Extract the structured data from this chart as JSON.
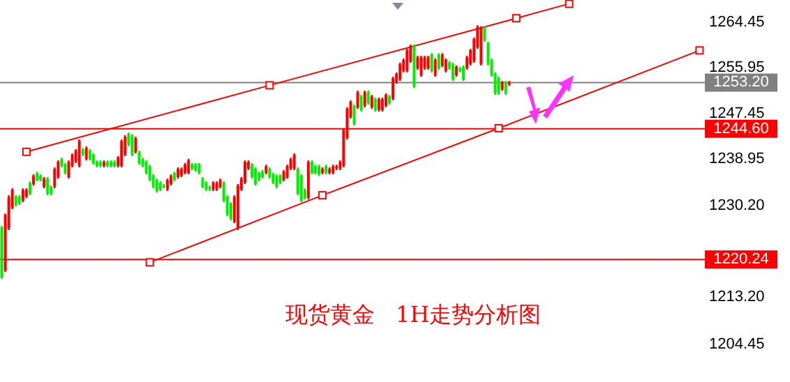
{
  "chart_data": {
    "type": "candlestick",
    "title": "现货黄金   1H走势分析图",
    "ylim": [
      1197.4,
      1268.6
    ],
    "categories": [
      null,
      null,
      null,
      null,
      null,
      null,
      null,
      null,
      null,
      null,
      null,
      null,
      null,
      null,
      null,
      null,
      null,
      null,
      null,
      null,
      null,
      null,
      null,
      null,
      null,
      null,
      null,
      null,
      null,
      null,
      null,
      null,
      null,
      null,
      null,
      null,
      null,
      null,
      null,
      null,
      null,
      null,
      null,
      null,
      null,
      null,
      null,
      null,
      null,
      null,
      null,
      null,
      null,
      null,
      null,
      null,
      null,
      null,
      null,
      null,
      null,
      null,
      null,
      null,
      null,
      null,
      null,
      null,
      null,
      null,
      null,
      null,
      null,
      null,
      null,
      null,
      null,
      null,
      null,
      null,
      null,
      null,
      null,
      null,
      null,
      null,
      null,
      null,
      null,
      null,
      null,
      null,
      null,
      null,
      null,
      null,
      null,
      null,
      null,
      null,
      null,
      null,
      null,
      null,
      null,
      null,
      null,
      null,
      null,
      null,
      null,
      null,
      null,
      null,
      null,
      null,
      null,
      null,
      null,
      null,
      null,
      null,
      null,
      null,
      null,
      null,
      null,
      null,
      null,
      null,
      null,
      null,
      null,
      null,
      null,
      null,
      null,
      null,
      null,
      null,
      null,
      null,
      null,
      null,
      null,
      null,
      null,
      null,
      null,
      null,
      null,
      null,
      null,
      null,
      null,
      null,
      null,
      null,
      null,
      null,
      null,
      null,
      null,
      null,
      null,
      null,
      null,
      null,
      null,
      null,
      null,
      null,
      null,
      null,
      null,
      null,
      null,
      null,
      null,
      null,
      null,
      null,
      null,
      null,
      null,
      null,
      null,
      null,
      null,
      null,
      null,
      null,
      null,
      null,
      null,
      null,
      null,
      null,
      null,
      null
    ],
    "yticks": [
      {
        "value": 1264.45,
        "label": "1264.45"
      },
      {
        "value": 1255.95,
        "label": "1255.95"
      },
      {
        "value": 1247.45,
        "label": "1247.45"
      },
      {
        "value": 1238.95,
        "label": "1238.95"
      },
      {
        "value": 1230.2,
        "label": "1230.20"
      },
      {
        "value": 1213.2,
        "label": "1213.20"
      },
      {
        "value": 1204.45,
        "label": "1204.45"
      }
    ],
    "ref_lines": [
      {
        "axis": "y",
        "value": 1253.2,
        "label": "1253.20",
        "color": "#808080"
      },
      {
        "axis": "y",
        "value": 1244.6,
        "label": "1244.60",
        "color": "#ff0000"
      },
      {
        "axis": "y",
        "value": 1220.24,
        "label": "1220.24",
        "color": "#ff0000"
      }
    ],
    "series": [
      {
        "colors": [
          "#00ee00",
          "#ff0000",
          "#ff0000",
          "#ff0000",
          "#00ee00",
          "#00ee00",
          "#ff0000",
          "#ff0000",
          "#00ee00",
          "#ff0000",
          "#00ee00",
          "#00ee00",
          "#ff0000",
          "#00ee00",
          "#00ee00",
          "#ff0000",
          "#ff0000",
          "#00ee00",
          "#00ee00",
          "#ff0000",
          "#ff0000",
          "#ff0000",
          "#ff0000",
          "#00ee00",
          "#ff0000",
          "#00ee00",
          "#00ee00",
          "#00ee00",
          "#00ee00",
          "#ff0000",
          "#00ee00",
          "#00ee00",
          "#00ee00",
          "#ff0000",
          "#ff0000",
          "#ff0000",
          "#00ee00",
          "#00ee00",
          "#ff0000",
          "#00ee00",
          "#00ee00",
          "#00ee00",
          "#00ee00",
          "#00ee00",
          "#00ee00",
          "#00ee00",
          "#00ee00",
          "#ff0000",
          "#ff0000",
          "#00ee00",
          "#ff0000",
          "#ff0000",
          "#ff0000",
          "#ff0000",
          "#00ee00",
          "#00ee00",
          "#00ee00",
          "#00ee00",
          "#00ee00",
          "#00ee00",
          "#ff0000",
          "#ff0000",
          "#ff0000",
          "#00ee00",
          "#00ee00",
          "#00ee00",
          "#ff0000",
          "#ff0000",
          "#ff0000",
          "#ff0000",
          "#ff0000",
          "#00ee00",
          "#00ee00",
          "#00ee00",
          "#00ee00",
          "#ff0000",
          "#00ee00",
          "#00ee00",
          "#00ee00",
          "#00ee00",
          "#ff0000",
          "#ff0000",
          "#ff0000",
          "#ff0000",
          "#00ee00",
          "#00ee00",
          "#00ee00",
          "#ff0000",
          "#00ee00",
          "#00ee00",
          "#00ee00",
          "#ff0000",
          "#00ee00",
          "#ff0000",
          "#ff0000",
          "#ff0000",
          "#ff0000",
          "#ff0000",
          "#ff0000",
          "#ff0000",
          "#00ee00",
          "#ff0000",
          "#00ee00",
          "#ff0000",
          "#00ee00",
          "#ff0000",
          "#00ee00",
          "#ff0000",
          "#ff0000",
          "#ff0000",
          "#00ee00",
          "#ff0000",
          "#ff0000",
          "#ff0000",
          "#ff0000",
          "#ff0000",
          "#ff0000",
          "#00ee00",
          "#ff0000",
          "#ff0000",
          "#ff0000",
          "#ff0000",
          "#00ee00",
          "#ff0000",
          "#00ee00",
          "#ff0000",
          "#ff0000",
          "#00ee00",
          "#00ee00",
          "#ff0000",
          "#00ee00",
          "#00ee00",
          "#ff0000",
          "#ff0000",
          "#ff0000",
          "#ff0000",
          "#ff0000",
          "#00ee00",
          "#00ee00",
          "#00ee00",
          "#00ee00",
          "#00ee00",
          "#ff0000",
          "#00ee00",
          "#ff0000",
          null,
          null,
          null,
          null,
          null,
          null,
          null,
          null,
          null,
          null,
          null,
          null,
          null,
          null,
          null,
          null,
          null,
          null,
          null,
          null,
          null,
          null,
          null,
          null,
          null,
          null,
          null,
          null,
          null,
          null,
          null,
          null,
          null,
          null,
          null,
          null,
          null,
          null,
          null,
          null,
          null,
          null,
          null,
          null,
          null,
          null,
          null,
          null,
          null,
          null,
          null,
          null,
          null,
          null,
          null
        ],
        "ohlc": [
          [
            1226.2,
            1226.5,
            1216.6,
            1216.9
          ],
          [
            1218.2,
            1228.8,
            1217.9,
            1228.5
          ],
          [
            1226.0,
            1232.2,
            1225.7,
            1231.9
          ],
          [
            1229.9,
            1233.5,
            1229.6,
            1233.2
          ],
          [
            1231.9,
            1232.2,
            1230.1,
            1230.4
          ],
          [
            1231.9,
            1232.2,
            1230.4,
            1230.7
          ],
          [
            1231.2,
            1233.5,
            1230.9,
            1233.2
          ],
          [
            1232.0,
            1233.5,
            1231.7,
            1233.2
          ],
          [
            1234.5,
            1234.8,
            1232.2,
            1232.5
          ],
          [
            1234.3,
            1236.1,
            1234.0,
            1235.8
          ],
          [
            1236.3,
            1236.6,
            1234.8,
            1235.1
          ],
          [
            1235.8,
            1236.1,
            1234.8,
            1235.1
          ],
          [
            1233.8,
            1235.6,
            1233.5,
            1235.3
          ],
          [
            1235.3,
            1235.6,
            1232.2,
            1232.5
          ],
          [
            1233.7,
            1234.0,
            1232.2,
            1232.5
          ],
          [
            1233.8,
            1237.4,
            1233.5,
            1237.1
          ],
          [
            1235.6,
            1238.7,
            1235.3,
            1238.4
          ],
          [
            1238.9,
            1239.2,
            1237.4,
            1237.7
          ],
          [
            1237.9,
            1238.2,
            1236.1,
            1236.4
          ],
          [
            1235.6,
            1238.7,
            1235.3,
            1238.4
          ],
          [
            1237.7,
            1240.0,
            1237.4,
            1239.7
          ],
          [
            1238.5,
            1240.8,
            1238.2,
            1240.5
          ],
          [
            1237.7,
            1242.6,
            1237.4,
            1242.3
          ],
          [
            1240.7,
            1241.0,
            1239.5,
            1239.8
          ],
          [
            1239.0,
            1241.3,
            1238.7,
            1241.0
          ],
          [
            1240.5,
            1240.8,
            1238.7,
            1239.0
          ],
          [
            1239.7,
            1240.0,
            1237.9,
            1238.2
          ],
          [
            1238.4,
            1238.7,
            1237.4,
            1237.7
          ],
          [
            1238.4,
            1238.7,
            1237.4,
            1237.7
          ],
          [
            1237.7,
            1238.7,
            1237.4,
            1238.4
          ],
          [
            1238.4,
            1238.7,
            1237.4,
            1237.7
          ],
          [
            1238.4,
            1238.7,
            1237.4,
            1237.7
          ],
          [
            1238.4,
            1238.7,
            1237.4,
            1237.7
          ],
          [
            1237.7,
            1239.5,
            1237.4,
            1239.2
          ],
          [
            1237.7,
            1242.6,
            1237.4,
            1242.3
          ],
          [
            1239.8,
            1243.4,
            1239.5,
            1243.1
          ],
          [
            1243.6,
            1243.9,
            1241.3,
            1241.6
          ],
          [
            1243.3,
            1243.6,
            1239.5,
            1239.8
          ],
          [
            1240.3,
            1243.1,
            1240.0,
            1242.8
          ],
          [
            1240.2,
            1240.5,
            1237.9,
            1238.2
          ],
          [
            1238.9,
            1239.2,
            1237.4,
            1237.7
          ],
          [
            1238.4,
            1238.7,
            1236.1,
            1236.4
          ],
          [
            1237.6,
            1237.9,
            1234.8,
            1235.1
          ],
          [
            1235.8,
            1236.1,
            1233.5,
            1233.8
          ],
          [
            1235.0,
            1235.3,
            1232.7,
            1233.0
          ],
          [
            1234.5,
            1234.8,
            1233.0,
            1233.3
          ],
          [
            1234.0,
            1234.3,
            1233.5,
            1233.8
          ],
          [
            1233.3,
            1235.3,
            1233.0,
            1235.0
          ],
          [
            1234.3,
            1236.1,
            1234.0,
            1235.8
          ],
          [
            1236.3,
            1236.6,
            1234.8,
            1235.1
          ],
          [
            1235.6,
            1237.4,
            1235.3,
            1237.1
          ],
          [
            1235.9,
            1237.4,
            1235.6,
            1237.1
          ],
          [
            1236.4,
            1238.2,
            1236.1,
            1237.9
          ],
          [
            1236.4,
            1239.0,
            1236.1,
            1238.7
          ],
          [
            1237.9,
            1238.2,
            1236.9,
            1237.2
          ],
          [
            1237.9,
            1238.2,
            1236.6,
            1236.9
          ],
          [
            1237.9,
            1238.2,
            1236.1,
            1236.4
          ],
          [
            1235.3,
            1235.6,
            1233.5,
            1233.8
          ],
          [
            1234.5,
            1234.8,
            1233.0,
            1233.3
          ],
          [
            1233.7,
            1234.0,
            1233.0,
            1233.3
          ],
          [
            1233.3,
            1234.8,
            1233.0,
            1234.5
          ],
          [
            1233.3,
            1234.8,
            1233.0,
            1234.5
          ],
          [
            1233.8,
            1235.3,
            1233.5,
            1235.0
          ],
          [
            1234.5,
            1234.8,
            1230.9,
            1231.2
          ],
          [
            1231.9,
            1232.2,
            1228.3,
            1228.6
          ],
          [
            1230.6,
            1230.9,
            1227.5,
            1227.8
          ],
          [
            1227.3,
            1232.2,
            1227.0,
            1231.9
          ],
          [
            1226.0,
            1234.3,
            1225.7,
            1234.0
          ],
          [
            1233.3,
            1235.6,
            1233.0,
            1235.3
          ],
          [
            1234.6,
            1238.7,
            1234.3,
            1238.4
          ],
          [
            1237.2,
            1238.7,
            1236.9,
            1238.4
          ],
          [
            1237.9,
            1238.2,
            1235.3,
            1235.6
          ],
          [
            1237.1,
            1237.4,
            1234.0,
            1234.3
          ],
          [
            1236.3,
            1236.6,
            1234.8,
            1235.1
          ],
          [
            1236.6,
            1236.9,
            1235.3,
            1235.6
          ],
          [
            1236.4,
            1237.9,
            1236.1,
            1237.6
          ],
          [
            1237.1,
            1237.4,
            1235.3,
            1235.6
          ],
          [
            1236.1,
            1236.4,
            1234.3,
            1234.6
          ],
          [
            1235.8,
            1236.1,
            1233.5,
            1233.8
          ],
          [
            1235.8,
            1236.1,
            1234.3,
            1234.6
          ],
          [
            1235.1,
            1236.9,
            1234.8,
            1236.6
          ],
          [
            1235.6,
            1237.9,
            1235.3,
            1237.6
          ],
          [
            1237.2,
            1239.2,
            1236.9,
            1238.9
          ],
          [
            1237.2,
            1240.0,
            1236.9,
            1239.7
          ],
          [
            1237.1,
            1237.4,
            1232.2,
            1232.5
          ],
          [
            1235.8,
            1236.1,
            1230.9,
            1231.2
          ],
          [
            1233.2,
            1233.5,
            1231.4,
            1231.7
          ],
          [
            1231.7,
            1238.7,
            1231.4,
            1238.4
          ],
          [
            1238.4,
            1238.7,
            1236.1,
            1236.4
          ],
          [
            1237.6,
            1237.9,
            1236.1,
            1236.4
          ],
          [
            1237.6,
            1237.9,
            1235.8,
            1236.1
          ],
          [
            1236.4,
            1237.4,
            1236.1,
            1237.1
          ],
          [
            1237.6,
            1237.9,
            1236.1,
            1236.4
          ],
          [
            1236.4,
            1237.4,
            1236.1,
            1237.1
          ],
          [
            1236.4,
            1237.9,
            1236.1,
            1237.6
          ],
          [
            1237.2,
            1237.9,
            1236.9,
            1237.6
          ],
          [
            1237.2,
            1238.7,
            1236.9,
            1238.4
          ],
          [
            1237.7,
            1244.7,
            1237.4,
            1244.4
          ],
          [
            1242.9,
            1248.6,
            1242.6,
            1248.3
          ],
          [
            1246.8,
            1249.9,
            1246.5,
            1249.6
          ],
          [
            1248.8,
            1249.1,
            1245.2,
            1245.5
          ],
          [
            1248.6,
            1251.7,
            1248.3,
            1251.4
          ],
          [
            1250.6,
            1250.9,
            1247.8,
            1248.1
          ],
          [
            1248.9,
            1251.7,
            1248.6,
            1251.4
          ],
          [
            1251.4,
            1251.7,
            1249.1,
            1249.4
          ],
          [
            1248.6,
            1250.9,
            1248.3,
            1250.6
          ],
          [
            1250.1,
            1250.4,
            1247.8,
            1248.1
          ],
          [
            1248.1,
            1250.4,
            1247.8,
            1250.1
          ],
          [
            1248.1,
            1250.4,
            1247.8,
            1250.1
          ],
          [
            1248.9,
            1251.2,
            1248.6,
            1250.9
          ],
          [
            1250.6,
            1250.9,
            1249.1,
            1249.4
          ],
          [
            1250.2,
            1254.3,
            1249.9,
            1254.0
          ],
          [
            1253.3,
            1255.1,
            1253.0,
            1254.8
          ],
          [
            1253.8,
            1256.9,
            1253.5,
            1256.6
          ],
          [
            1255.4,
            1257.7,
            1255.1,
            1257.4
          ],
          [
            1255.4,
            1259.5,
            1255.1,
            1259.2
          ],
          [
            1257.2,
            1260.3,
            1256.9,
            1260.0
          ],
          [
            1260.0,
            1260.3,
            1252.2,
            1252.5
          ],
          [
            1255.9,
            1258.2,
            1255.6,
            1257.9
          ],
          [
            1254.6,
            1258.2,
            1254.3,
            1257.9
          ],
          [
            1255.9,
            1258.2,
            1255.6,
            1257.9
          ],
          [
            1255.9,
            1258.2,
            1255.6,
            1257.9
          ],
          [
            1258.4,
            1258.7,
            1255.1,
            1255.4
          ],
          [
            1254.6,
            1257.7,
            1254.3,
            1257.4
          ],
          [
            1258.4,
            1258.7,
            1255.6,
            1255.9
          ],
          [
            1256.4,
            1258.7,
            1256.1,
            1258.4
          ],
          [
            1255.4,
            1257.7,
            1255.1,
            1257.4
          ],
          [
            1256.9,
            1257.2,
            1255.6,
            1255.9
          ],
          [
            1256.6,
            1256.9,
            1253.5,
            1253.8
          ],
          [
            1254.6,
            1256.4,
            1254.3,
            1256.1
          ],
          [
            1255.8,
            1256.1,
            1255.1,
            1255.4
          ],
          [
            1256.1,
            1256.4,
            1253.5,
            1253.8
          ],
          [
            1255.9,
            1258.2,
            1255.6,
            1257.9
          ],
          [
            1256.7,
            1259.5,
            1256.4,
            1259.2
          ],
          [
            1257.2,
            1261.6,
            1256.9,
            1261.3
          ],
          [
            1259.8,
            1263.9,
            1259.5,
            1263.6
          ],
          [
            1256.7,
            1263.7,
            1256.4,
            1263.4
          ],
          [
            1263.4,
            1263.7,
            1260.8,
            1261.1
          ],
          [
            1260.5,
            1260.8,
            1256.4,
            1256.7
          ],
          [
            1257.4,
            1257.7,
            1254.3,
            1254.6
          ],
          [
            1254.8,
            1255.1,
            1250.9,
            1251.2
          ],
          [
            1254.0,
            1254.3,
            1250.9,
            1251.2
          ],
          [
            1252.0,
            1253.5,
            1251.7,
            1253.2
          ],
          [
            1253.2,
            1253.5,
            1250.9,
            1251.2
          ],
          [
            1252.9,
            1253.5,
            1252.6,
            1253.2
          ],
          null,
          null,
          null,
          null,
          null,
          null,
          null,
          null,
          null,
          null,
          null,
          null,
          null,
          null,
          null,
          null,
          null,
          null,
          null,
          null,
          null,
          null,
          null,
          null,
          null,
          null,
          null,
          null,
          null,
          null,
          null,
          null,
          null,
          null,
          null,
          null,
          null,
          null,
          null,
          null,
          null,
          null,
          null,
          null,
          null,
          null,
          null,
          null,
          null,
          null,
          null,
          null,
          null,
          null,
          null
        ]
      },
      {
        "type": "line",
        "color": "#ff0000",
        "marker": "square",
        "values": [
          null,
          null,
          null,
          null,
          null,
          null,
          null,
          1240.3,
          null,
          null,
          null,
          null,
          null,
          null,
          null,
          null,
          null,
          null,
          null,
          null,
          null,
          null,
          null,
          null,
          null,
          null,
          null,
          null,
          null,
          null,
          null,
          null,
          null,
          null,
          null,
          null,
          null,
          null,
          null,
          null,
          null,
          null,
          null,
          null,
          null,
          null,
          null,
          null,
          null,
          null,
          null,
          null,
          null,
          null,
          null,
          null,
          null,
          null,
          null,
          null,
          null,
          null,
          null,
          null,
          null,
          null,
          null,
          null,
          null,
          null,
          null,
          null,
          null,
          null,
          null,
          null,
          1252.7,
          null,
          null,
          null,
          null,
          null,
          null,
          null,
          null,
          null,
          null,
          null,
          null,
          null,
          null,
          null,
          null,
          null,
          null,
          null,
          null,
          null,
          null,
          null,
          null,
          null,
          null,
          null,
          null,
          null,
          null,
          null,
          null,
          null,
          null,
          null,
          null,
          null,
          null,
          null,
          null,
          null,
          null,
          null,
          null,
          null,
          null,
          null,
          null,
          null,
          null,
          null,
          null,
          null,
          null,
          null,
          null,
          null,
          null,
          null,
          null,
          null,
          null,
          null,
          null,
          null,
          null,
          null,
          null,
          null,
          1265.2,
          null,
          null,
          null,
          null,
          null,
          null,
          null,
          null,
          null,
          null,
          null,
          null,
          null,
          null,
          1267.9,
          null,
          null,
          null,
          null,
          null,
          null,
          null,
          null,
          null,
          null,
          null,
          null,
          null,
          null,
          null,
          null,
          null,
          null,
          null,
          null,
          null,
          null,
          null,
          null,
          null,
          null,
          null,
          null,
          null,
          null,
          null,
          null,
          null,
          null,
          null,
          null,
          null,
          null
        ]
      },
      {
        "type": "line",
        "color": "#ff0000",
        "marker": "square",
        "values": [
          null,
          null,
          null,
          null,
          null,
          null,
          null,
          null,
          null,
          null,
          null,
          null,
          null,
          null,
          null,
          null,
          null,
          null,
          null,
          null,
          null,
          null,
          null,
          null,
          null,
          null,
          null,
          null,
          null,
          null,
          null,
          null,
          null,
          null,
          null,
          null,
          null,
          null,
          null,
          null,
          null,
          null,
          1219.7,
          null,
          null,
          null,
          null,
          null,
          null,
          null,
          null,
          null,
          null,
          null,
          null,
          null,
          null,
          null,
          null,
          null,
          null,
          null,
          null,
          null,
          null,
          null,
          null,
          null,
          null,
          null,
          null,
          null,
          null,
          null,
          null,
          null,
          null,
          null,
          null,
          null,
          null,
          null,
          null,
          null,
          null,
          null,
          null,
          null,
          null,
          null,
          null,
          1232.2,
          null,
          null,
          null,
          null,
          null,
          null,
          null,
          null,
          null,
          null,
          null,
          null,
          null,
          null,
          null,
          null,
          null,
          null,
          null,
          null,
          null,
          null,
          null,
          null,
          null,
          null,
          null,
          null,
          null,
          null,
          null,
          null,
          null,
          null,
          null,
          null,
          null,
          null,
          null,
          null,
          null,
          null,
          null,
          null,
          null,
          null,
          null,
          null,
          null,
          1244.7,
          null,
          null,
          null,
          null,
          null,
          null,
          null,
          null,
          null,
          null,
          null,
          null,
          null,
          null,
          null,
          null,
          null,
          null,
          null,
          null,
          null,
          null,
          null,
          null,
          null,
          null,
          null,
          null,
          null,
          null,
          null,
          null,
          null,
          null,
          null,
          null,
          null,
          null,
          null,
          null,
          null,
          null,
          null,
          null,
          null,
          null,
          null,
          null,
          null,
          null,
          null,
          null,
          null,
          null,
          null,
          null,
          1259.2,
          null
        ]
      }
    ]
  }
}
